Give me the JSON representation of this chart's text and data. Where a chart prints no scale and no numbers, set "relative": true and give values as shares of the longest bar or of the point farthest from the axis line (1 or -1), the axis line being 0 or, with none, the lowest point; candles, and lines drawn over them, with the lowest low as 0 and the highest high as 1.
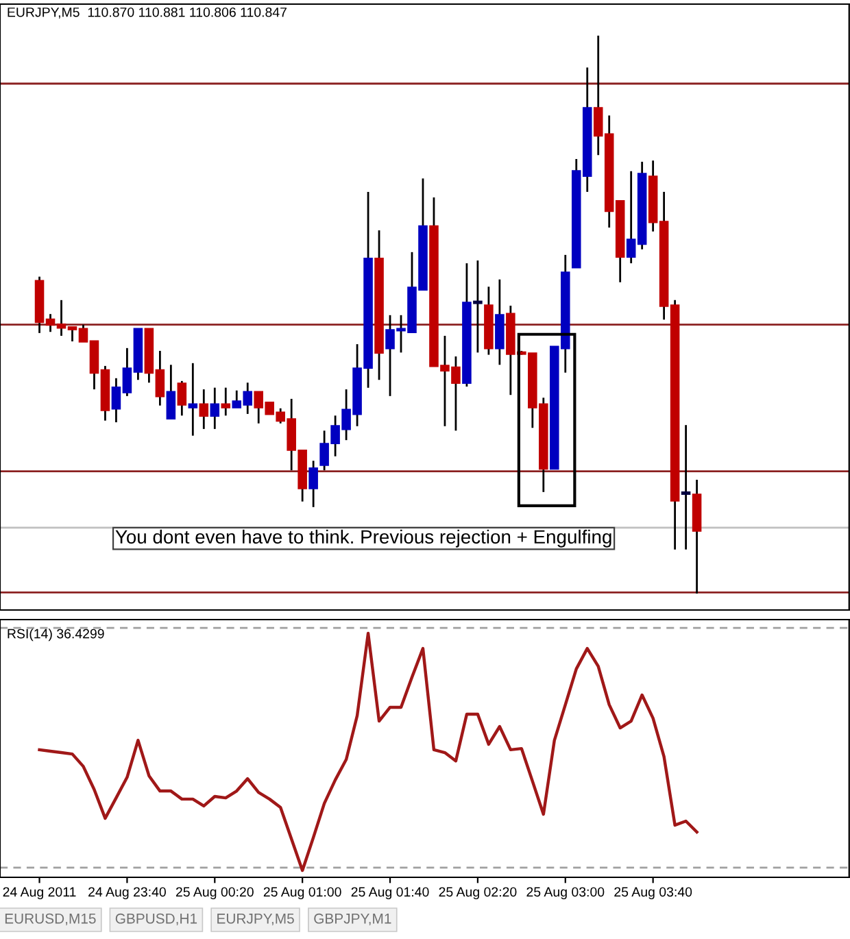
{
  "chart_data": [
    {
      "type": "candlestick",
      "title": "EURJPY,M5  110.870 110.881 110.806 110.847",
      "relative": true,
      "tick_labels": false,
      "grid": false,
      "categories": [
        null,
        null,
        null,
        null,
        null,
        null,
        null,
        null,
        null,
        null,
        null,
        null,
        null,
        null,
        null,
        null,
        null,
        null,
        null,
        null,
        null,
        null,
        null,
        null,
        null,
        null,
        null,
        null,
        null,
        null,
        null,
        null,
        null,
        null,
        null,
        null,
        null,
        null,
        null,
        null,
        null,
        null,
        null,
        null,
        null,
        null,
        null,
        null,
        null,
        null,
        null,
        null,
        null,
        null,
        null,
        null,
        null,
        null,
        null,
        null,
        null
      ],
      "ohlc": [
        [
          0.56,
          0.568,
          0.467,
          0.487
        ],
        [
          0.491,
          0.501,
          0.469,
          0.482
        ],
        [
          0.482,
          0.526,
          0.462,
          0.477
        ],
        [
          0.477,
          0.477,
          0.452,
          0.474
        ],
        [
          0.474,
          0.482,
          0.452,
          0.452
        ],
        [
          0.452,
          0.452,
          0.366,
          0.396
        ],
        [
          0.4,
          0.408,
          0.31,
          0.329
        ],
        [
          0.332,
          0.386,
          0.307,
          0.369
        ],
        [
          0.361,
          0.44,
          0.354,
          0.403
        ],
        [
          0.398,
          0.474,
          0.383,
          0.474
        ],
        [
          0.474,
          0.474,
          0.378,
          0.396
        ],
        [
          0.4,
          0.435,
          0.337,
          0.354
        ],
        [
          0.314,
          0.41,
          0.314,
          0.361
        ],
        [
          0.376,
          0.381,
          0.319,
          0.339
        ],
        [
          0.334,
          0.413,
          0.283,
          0.339
        ],
        [
          0.339,
          0.366,
          0.295,
          0.319
        ],
        [
          0.319,
          0.369,
          0.295,
          0.339
        ],
        [
          0.339,
          0.369,
          0.319,
          0.334
        ],
        [
          0.334,
          0.364,
          0.334,
          0.344
        ],
        [
          0.339,
          0.378,
          0.322,
          0.361
        ],
        [
          0.361,
          0.361,
          0.305,
          0.334
        ],
        [
          0.342,
          0.342,
          0.322,
          0.322
        ],
        [
          0.324,
          0.332,
          0.305,
          0.31
        ],
        [
          0.312,
          0.349,
          0.221,
          0.258
        ],
        [
          0.256,
          0.256,
          0.165,
          0.189
        ],
        [
          0.189,
          0.238,
          0.155,
          0.224
        ],
        [
          0.231,
          0.292,
          0.221,
          0.268
        ],
        [
          0.27,
          0.319,
          0.246,
          0.3
        ],
        [
          0.295,
          0.366,
          0.275,
          0.329
        ],
        [
          0.322,
          0.447,
          0.3,
          0.403
        ],
        [
          0.405,
          0.72,
          0.369,
          0.6
        ],
        [
          0.6,
          0.651,
          0.383,
          0.432
        ],
        [
          0.44,
          0.499,
          0.354,
          0.472
        ],
        [
          0.472,
          0.499,
          0.432,
          0.474
        ],
        [
          0.469,
          0.612,
          0.469,
          0.548
        ],
        [
          0.545,
          0.744,
          0.545,
          0.658
        ],
        [
          0.658,
          0.71,
          0.408,
          0.408
        ],
        [
          0.408,
          0.462,
          0.3,
          0.4
        ],
        [
          0.405,
          0.425,
          0.292,
          0.378
        ],
        [
          0.378,
          0.592,
          0.371,
          0.521
        ],
        [
          0.521,
          0.597,
          0.432,
          0.523
        ],
        [
          0.516,
          0.55,
          0.428,
          0.44
        ],
        [
          0.44,
          0.563,
          0.41,
          0.499
        ],
        [
          0.501,
          0.516,
          0.356,
          0.43
        ],
        [
          0.432,
          0.435,
          0.428,
          0.43
        ],
        [
          0.43,
          0.43,
          0.297,
          0.334
        ],
        [
          0.339,
          0.351,
          0.182,
          0.224
        ],
        [
          0.224,
          0.442,
          0.224,
          0.442
        ],
        [
          0.44,
          0.607,
          0.396,
          0.575
        ],
        [
          0.585,
          0.779,
          0.585,
          0.757
        ],
        [
          0.749,
          0.943,
          0.72,
          0.87
        ],
        [
          0.87,
          1,
          0.786,
          0.821
        ],
        [
          0.823,
          0.857,
          0.656,
          0.686
        ],
        [
          0.703,
          0.703,
          0.558,
          0.604
        ],
        [
          0.604,
          0.757,
          0.592,
          0.634
        ],
        [
          0.627,
          0.774,
          0.617,
          0.752
        ],
        [
          0.747,
          0.776,
          0.649,
          0.666
        ],
        [
          0.666,
          0.72,
          0.491,
          0.516
        ],
        [
          0.516,
          0.526,
          0.079,
          0.167
        ],
        [
          0.179,
          0.302,
          0.079,
          0.181
        ],
        [
          0.177,
          0.204,
          0,
          0.113
        ]
      ],
      "colors": [
        "#c00000",
        "#c00000",
        "#c00000",
        "#c00000",
        "#c00000",
        "#c00000",
        "#c00000",
        "#0000c0",
        "#0000c0",
        "#0000c0",
        "#c00000",
        "#c00000",
        "#0000c0",
        "#c00000",
        "#0000c0",
        "#c00000",
        "#0000c0",
        "#c00000",
        "#0000c0",
        "#0000c0",
        "#c00000",
        "#c00000",
        "#c00000",
        "#c00000",
        "#c00000",
        "#0000c0",
        "#0000c0",
        "#0000c0",
        "#0000c0",
        "#0000c0",
        "#0000c0",
        "#c00000",
        "#0000c0",
        "#0000c0",
        "#0000c0",
        "#0000c0",
        "#c00000",
        "#c00000",
        "#c00000",
        "#0000c0",
        "#000040",
        "#c00000",
        "#0000c0",
        "#c00000",
        "#c00000",
        "#c00000",
        "#c00000",
        "#0000c0",
        "#0000c0",
        "#0000c0",
        "#0000c0",
        "#c00000",
        "#c00000",
        "#c00000",
        "#0000c0",
        "#0000c0",
        "#c00000",
        "#c00000",
        "#c00000",
        "#000040",
        "#c00000"
      ],
      "ref_lines": [
        {
          "axis": "y",
          "value": 0.914,
          "color": "#8b2020"
        },
        {
          "axis": "y",
          "value": 0.482,
          "color": "#8b2020"
        },
        {
          "axis": "y",
          "value": 0.219,
          "color": "#8b2020"
        },
        {
          "axis": "y",
          "value": 0.118,
          "color": "#c0c0c0"
        },
        {
          "axis": "y",
          "value": 0.002,
          "color": "#8b2020"
        }
      ],
      "annotations": [
        "You dont even have to think. Previous rejection + Engulfing"
      ]
    },
    {
      "type": "line",
      "title": "RSI(14) 36.4299",
      "relative": true,
      "tick_labels": "x",
      "grid": false,
      "marker": "none",
      "line_style": "solid",
      "categories": [
        "24 Aug 2011",
        null,
        null,
        null,
        null,
        null,
        null,
        null,
        "24 Aug 23:40",
        null,
        null,
        null,
        null,
        null,
        null,
        null,
        "25 Aug 00:20",
        null,
        null,
        null,
        null,
        null,
        null,
        null,
        "25 Aug 01:00",
        null,
        null,
        null,
        null,
        null,
        null,
        null,
        "25 Aug 01:40",
        null,
        null,
        null,
        null,
        null,
        null,
        null,
        "25 Aug 02:20",
        null,
        null,
        null,
        null,
        null,
        null,
        null,
        "25 Aug 03:00",
        null,
        null,
        null,
        null,
        null,
        null,
        null,
        "25 Aug 03:40",
        null,
        null,
        null,
        null
      ],
      "series": [
        {
          "color": "#a01818",
          "values": [
            0.509,
            0.503,
            0.497,
            0.491,
            0.439,
            0.341,
            0.22,
            0.306,
            0.393,
            0.549,
            0.399,
            0.335,
            0.335,
            0.301,
            0.301,
            0.272,
            0.312,
            0.306,
            0.335,
            0.387,
            0.329,
            0.301,
            0.266,
            0.133,
            0,
            0.139,
            0.283,
            0.382,
            0.468,
            0.653,
            1,
            0.63,
            0.688,
            0.688,
            0.815,
            0.936,
            0.509,
            0.497,
            0.462,
            0.659,
            0.659,
            0.532,
            0.607,
            0.509,
            0.514,
            0.376,
            0.237,
            0.549,
            0.699,
            0.85,
            0.936,
            0.861,
            0.699,
            0.601,
            0.63,
            0.74,
            0.642,
            0.48,
            0.191,
            0.208,
            0.162
          ]
        }
      ],
      "ref_lines": [
        {
          "axis": "y",
          "value": 1.023,
          "color": "#a0a0a0",
          "line_style": "dashed"
        },
        {
          "axis": "y",
          "value": 0.012,
          "color": "#a0a0a0",
          "line_style": "dashed"
        }
      ],
      "annotations": [
        "EURUSD,M15",
        "GBPUSD,H1",
        "EURJPY,M5",
        "GBPJPY,M1"
      ]
    }
  ]
}
